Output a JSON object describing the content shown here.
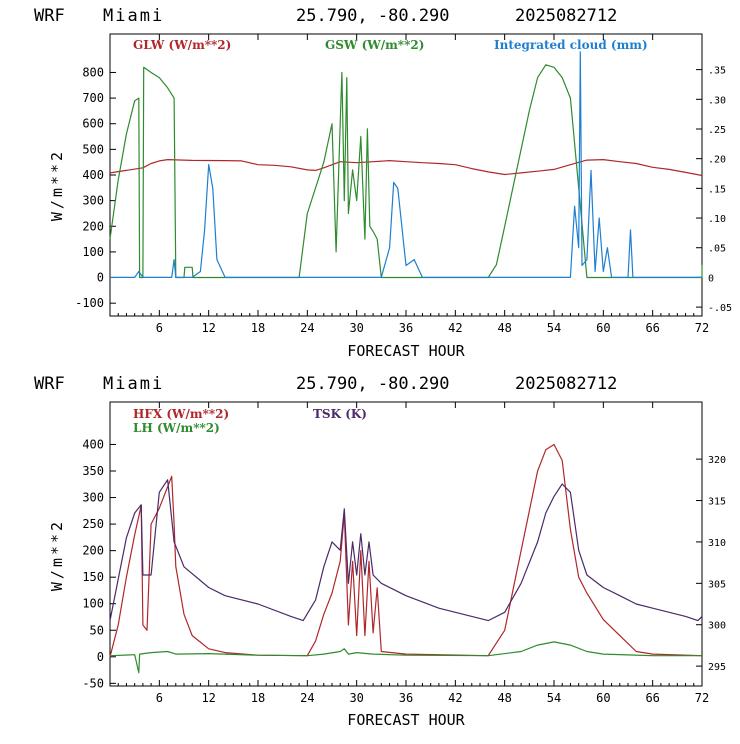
{
  "chart_data": [
    {
      "type": "line",
      "header": {
        "model": "WRF",
        "location": "Miami",
        "coords": "25.790, -80.290",
        "run": "2025082712"
      },
      "xlabel": "FORECAST HOUR",
      "ylabel": "W/m**2",
      "xlim": [
        0,
        72
      ],
      "ylim": [
        -150,
        950
      ],
      "x_ticks": [
        6,
        12,
        18,
        24,
        30,
        36,
        42,
        48,
        54,
        60,
        66,
        72
      ],
      "y_ticks": [
        -100,
        0,
        100,
        200,
        300,
        400,
        500,
        600,
        700,
        800
      ],
      "y_tick_labels": [
        "-100",
        "0",
        "100",
        "200",
        "300",
        "400",
        "500",
        "600",
        "700",
        "800"
      ],
      "y2_ticks": [
        -0.05,
        0,
        0.05,
        0.1,
        0.15,
        0.2,
        0.25,
        0.3,
        0.35
      ],
      "y2_tick_labels": [
        "-.05",
        "0",
        ".05",
        ".10",
        ".15",
        ".20",
        ".25",
        ".30",
        ".35"
      ],
      "series": [
        {
          "name": "GLW (W/m**2)",
          "color": "#b0272a",
          "axis": "left",
          "points": [
            [
              0,
              408
            ],
            [
              2,
              418
            ],
            [
              4,
              428
            ],
            [
              5,
              445
            ],
            [
              6,
              455
            ],
            [
              7,
              460
            ],
            [
              10,
              457
            ],
            [
              14,
              456
            ],
            [
              16,
              455
            ],
            [
              18,
              440
            ],
            [
              20,
              438
            ],
            [
              22,
              432
            ],
            [
              24,
              420
            ],
            [
              25,
              418
            ],
            [
              26,
              428
            ],
            [
              28,
              452
            ],
            [
              30,
              448
            ],
            [
              32,
              452
            ],
            [
              34,
              456
            ],
            [
              36,
              452
            ],
            [
              38,
              448
            ],
            [
              40,
              445
            ],
            [
              42,
              440
            ],
            [
              44,
              425
            ],
            [
              46,
              412
            ],
            [
              48,
              402
            ],
            [
              50,
              408
            ],
            [
              52,
              415
            ],
            [
              54,
              422
            ],
            [
              56,
              440
            ],
            [
              58,
              458
            ],
            [
              60,
              460
            ],
            [
              62,
              452
            ],
            [
              64,
              445
            ],
            [
              66,
              430
            ],
            [
              68,
              422
            ],
            [
              70,
              410
            ],
            [
              72,
              398
            ]
          ]
        },
        {
          "name": "GSW (W/m**2)",
          "color": "#2e8b2e",
          "axis": "left",
          "points": [
            [
              0,
              150
            ],
            [
              1,
              380
            ],
            [
              2,
              560
            ],
            [
              3,
              690
            ],
            [
              3.5,
              700
            ],
            [
              3.6,
              0
            ],
            [
              4,
              0
            ],
            [
              4.1,
              820
            ],
            [
              5,
              800
            ],
            [
              6,
              780
            ],
            [
              7,
              740
            ],
            [
              7.8,
              700
            ],
            [
              8,
              0
            ],
            [
              9,
              0
            ],
            [
              9.1,
              40
            ],
            [
              10,
              40
            ],
            [
              10.1,
              0
            ],
            [
              23,
              0
            ],
            [
              24,
              250
            ],
            [
              25,
              350
            ],
            [
              26,
              450
            ],
            [
              27,
              600
            ],
            [
              27.5,
              100
            ],
            [
              28,
              600
            ],
            [
              28.2,
              800
            ],
            [
              28.5,
              300
            ],
            [
              28.8,
              780
            ],
            [
              29,
              250
            ],
            [
              29.5,
              420
            ],
            [
              30,
              300
            ],
            [
              30.5,
              550
            ],
            [
              31,
              150
            ],
            [
              31.3,
              580
            ],
            [
              31.6,
              200
            ],
            [
              32,
              180
            ],
            [
              32.5,
              150
            ],
            [
              33,
              0
            ],
            [
              46,
              0
            ],
            [
              47,
              50
            ],
            [
              48,
              200
            ],
            [
              49,
              350
            ],
            [
              50,
              500
            ],
            [
              51,
              650
            ],
            [
              52,
              780
            ],
            [
              53,
              830
            ],
            [
              54,
              820
            ],
            [
              55,
              780
            ],
            [
              56,
              700
            ],
            [
              57,
              350
            ],
            [
              58,
              0
            ],
            [
              72,
              0
            ],
            [
              72,
              50
            ]
          ]
        },
        {
          "name": "Integrated cloud (mm)",
          "color": "#1e7fd0",
          "axis": "right",
          "points": [
            [
              0,
              0
            ],
            [
              3,
              0
            ],
            [
              3.5,
              0.01
            ],
            [
              4,
              0
            ],
            [
              7.5,
              0
            ],
            [
              7.8,
              0.03
            ],
            [
              8,
              0
            ],
            [
              10,
              0
            ],
            [
              11,
              0.01
            ],
            [
              11.5,
              0.08
            ],
            [
              12,
              0.19
            ],
            [
              12.5,
              0.15
            ],
            [
              13,
              0.03
            ],
            [
              14,
              0
            ],
            [
              33,
              0
            ],
            [
              34,
              0.05
            ],
            [
              34.5,
              0.16
            ],
            [
              35,
              0.15
            ],
            [
              36,
              0.02
            ],
            [
              37,
              0.03
            ],
            [
              38,
              0
            ],
            [
              56,
              0
            ],
            [
              56.5,
              0.12
            ],
            [
              57,
              0.05
            ],
            [
              57.2,
              0.38
            ],
            [
              57.4,
              0.02
            ],
            [
              58,
              0.03
            ],
            [
              58.5,
              0.18
            ],
            [
              59,
              0.01
            ],
            [
              59.5,
              0.1
            ],
            [
              60,
              0.01
            ],
            [
              60.5,
              0.05
            ],
            [
              61,
              0
            ],
            [
              63,
              0
            ],
            [
              63.3,
              0.08
            ],
            [
              63.6,
              0
            ],
            [
              72,
              0
            ]
          ]
        }
      ]
    },
    {
      "type": "line",
      "header": {
        "model": "WRF",
        "location": "Miami",
        "coords": "25.790, -80.290",
        "run": "2025082712"
      },
      "xlabel": "FORECAST HOUR",
      "ylabel": "W/m**2",
      "xlim": [
        0,
        72
      ],
      "ylim": [
        -55,
        480
      ],
      "x_ticks": [
        6,
        12,
        18,
        24,
        30,
        36,
        42,
        48,
        54,
        60,
        66,
        72
      ],
      "y_ticks": [
        -50,
        0,
        50,
        100,
        150,
        200,
        250,
        300,
        350,
        400
      ],
      "y_tick_labels": [
        "-50",
        "0",
        "50",
        "100",
        "150",
        "200",
        "250",
        "300",
        "350",
        "400"
      ],
      "y2_ticks": [
        295,
        300,
        305,
        310,
        315,
        320
      ],
      "y2_tick_labels": [
        "295",
        "300",
        "305",
        "310",
        "315",
        "320"
      ],
      "series": [
        {
          "name": "HFX (W/m**2)",
          "color": "#b0272a",
          "axis": "left",
          "points": [
            [
              0,
              0
            ],
            [
              1,
              60
            ],
            [
              2,
              150
            ],
            [
              3,
              230
            ],
            [
              3.8,
              285
            ],
            [
              4,
              60
            ],
            [
              4.5,
              50
            ],
            [
              5,
              250
            ],
            [
              6,
              280
            ],
            [
              7,
              320
            ],
            [
              7.5,
              340
            ],
            [
              7.8,
              250
            ],
            [
              8,
              170
            ],
            [
              9,
              80
            ],
            [
              10,
              40
            ],
            [
              12,
              15
            ],
            [
              14,
              8
            ],
            [
              18,
              3
            ],
            [
              24,
              2
            ],
            [
              25,
              30
            ],
            [
              26,
              80
            ],
            [
              27,
              120
            ],
            [
              28,
              180
            ],
            [
              28.5,
              270
            ],
            [
              29,
              60
            ],
            [
              29.5,
              180
            ],
            [
              30,
              40
            ],
            [
              30.5,
              200
            ],
            [
              31,
              40
            ],
            [
              31.5,
              180
            ],
            [
              32,
              45
            ],
            [
              32.5,
              130
            ],
            [
              33,
              10
            ],
            [
              36,
              5
            ],
            [
              46,
              2
            ],
            [
              48,
              50
            ],
            [
              50,
              200
            ],
            [
              52,
              350
            ],
            [
              53,
              390
            ],
            [
              54,
              400
            ],
            [
              55,
              370
            ],
            [
              56,
              240
            ],
            [
              57,
              150
            ],
            [
              58,
              120
            ],
            [
              60,
              70
            ],
            [
              62,
              40
            ],
            [
              64,
              10
            ],
            [
              66,
              5
            ],
            [
              72,
              2
            ]
          ]
        },
        {
          "name": "LH (W/m**2)",
          "color": "#2e8b2e",
          "axis": "left",
          "points": [
            [
              0,
              2
            ],
            [
              3,
              4
            ],
            [
              3.5,
              -30
            ],
            [
              3.6,
              5
            ],
            [
              5,
              8
            ],
            [
              7,
              10
            ],
            [
              8,
              5
            ],
            [
              12,
              6
            ],
            [
              18,
              3
            ],
            [
              24,
              2
            ],
            [
              26,
              5
            ],
            [
              28,
              10
            ],
            [
              28.5,
              15
            ],
            [
              29,
              5
            ],
            [
              30,
              8
            ],
            [
              32,
              5
            ],
            [
              36,
              3
            ],
            [
              46,
              2
            ],
            [
              50,
              10
            ],
            [
              52,
              22
            ],
            [
              54,
              28
            ],
            [
              56,
              22
            ],
            [
              58,
              10
            ],
            [
              60,
              5
            ],
            [
              66,
              2
            ],
            [
              72,
              2
            ]
          ]
        },
        {
          "name": "TSK (K)",
          "color": "#4b2a68",
          "axis": "right",
          "points": [
            [
              0,
              300.5
            ],
            [
              2,
              310.5
            ],
            [
              3,
              313.5
            ],
            [
              3.8,
              314.5
            ],
            [
              4,
              306
            ],
            [
              5,
              306
            ],
            [
              6,
              316
            ],
            [
              7,
              317.5
            ],
            [
              7.8,
              310
            ],
            [
              9,
              307
            ],
            [
              12,
              304.5
            ],
            [
              14,
              303.5
            ],
            [
              18,
              302.5
            ],
            [
              22,
              301
            ],
            [
              23.5,
              300.5
            ],
            [
              25,
              303
            ],
            [
              26,
              307
            ],
            [
              27,
              310
            ],
            [
              28,
              309
            ],
            [
              28.5,
              314
            ],
            [
              29,
              305
            ],
            [
              29.5,
              310
            ],
            [
              30,
              306
            ],
            [
              30.5,
              311
            ],
            [
              31,
              306
            ],
            [
              31.5,
              310
            ],
            [
              32,
              306
            ],
            [
              33,
              305
            ],
            [
              36,
              303.5
            ],
            [
              40,
              302
            ],
            [
              44,
              301
            ],
            [
              46,
              300.5
            ],
            [
              48,
              301.5
            ],
            [
              50,
              305
            ],
            [
              52,
              310
            ],
            [
              53,
              313.5
            ],
            [
              54,
              315.5
            ],
            [
              55,
              317
            ],
            [
              56,
              316
            ],
            [
              57,
              309
            ],
            [
              58,
              306
            ],
            [
              60,
              304.5
            ],
            [
              62,
              303.5
            ],
            [
              64,
              302.5
            ],
            [
              66,
              302
            ],
            [
              70,
              301
            ],
            [
              71.5,
              300.5
            ],
            [
              72,
              301
            ]
          ]
        }
      ]
    }
  ]
}
